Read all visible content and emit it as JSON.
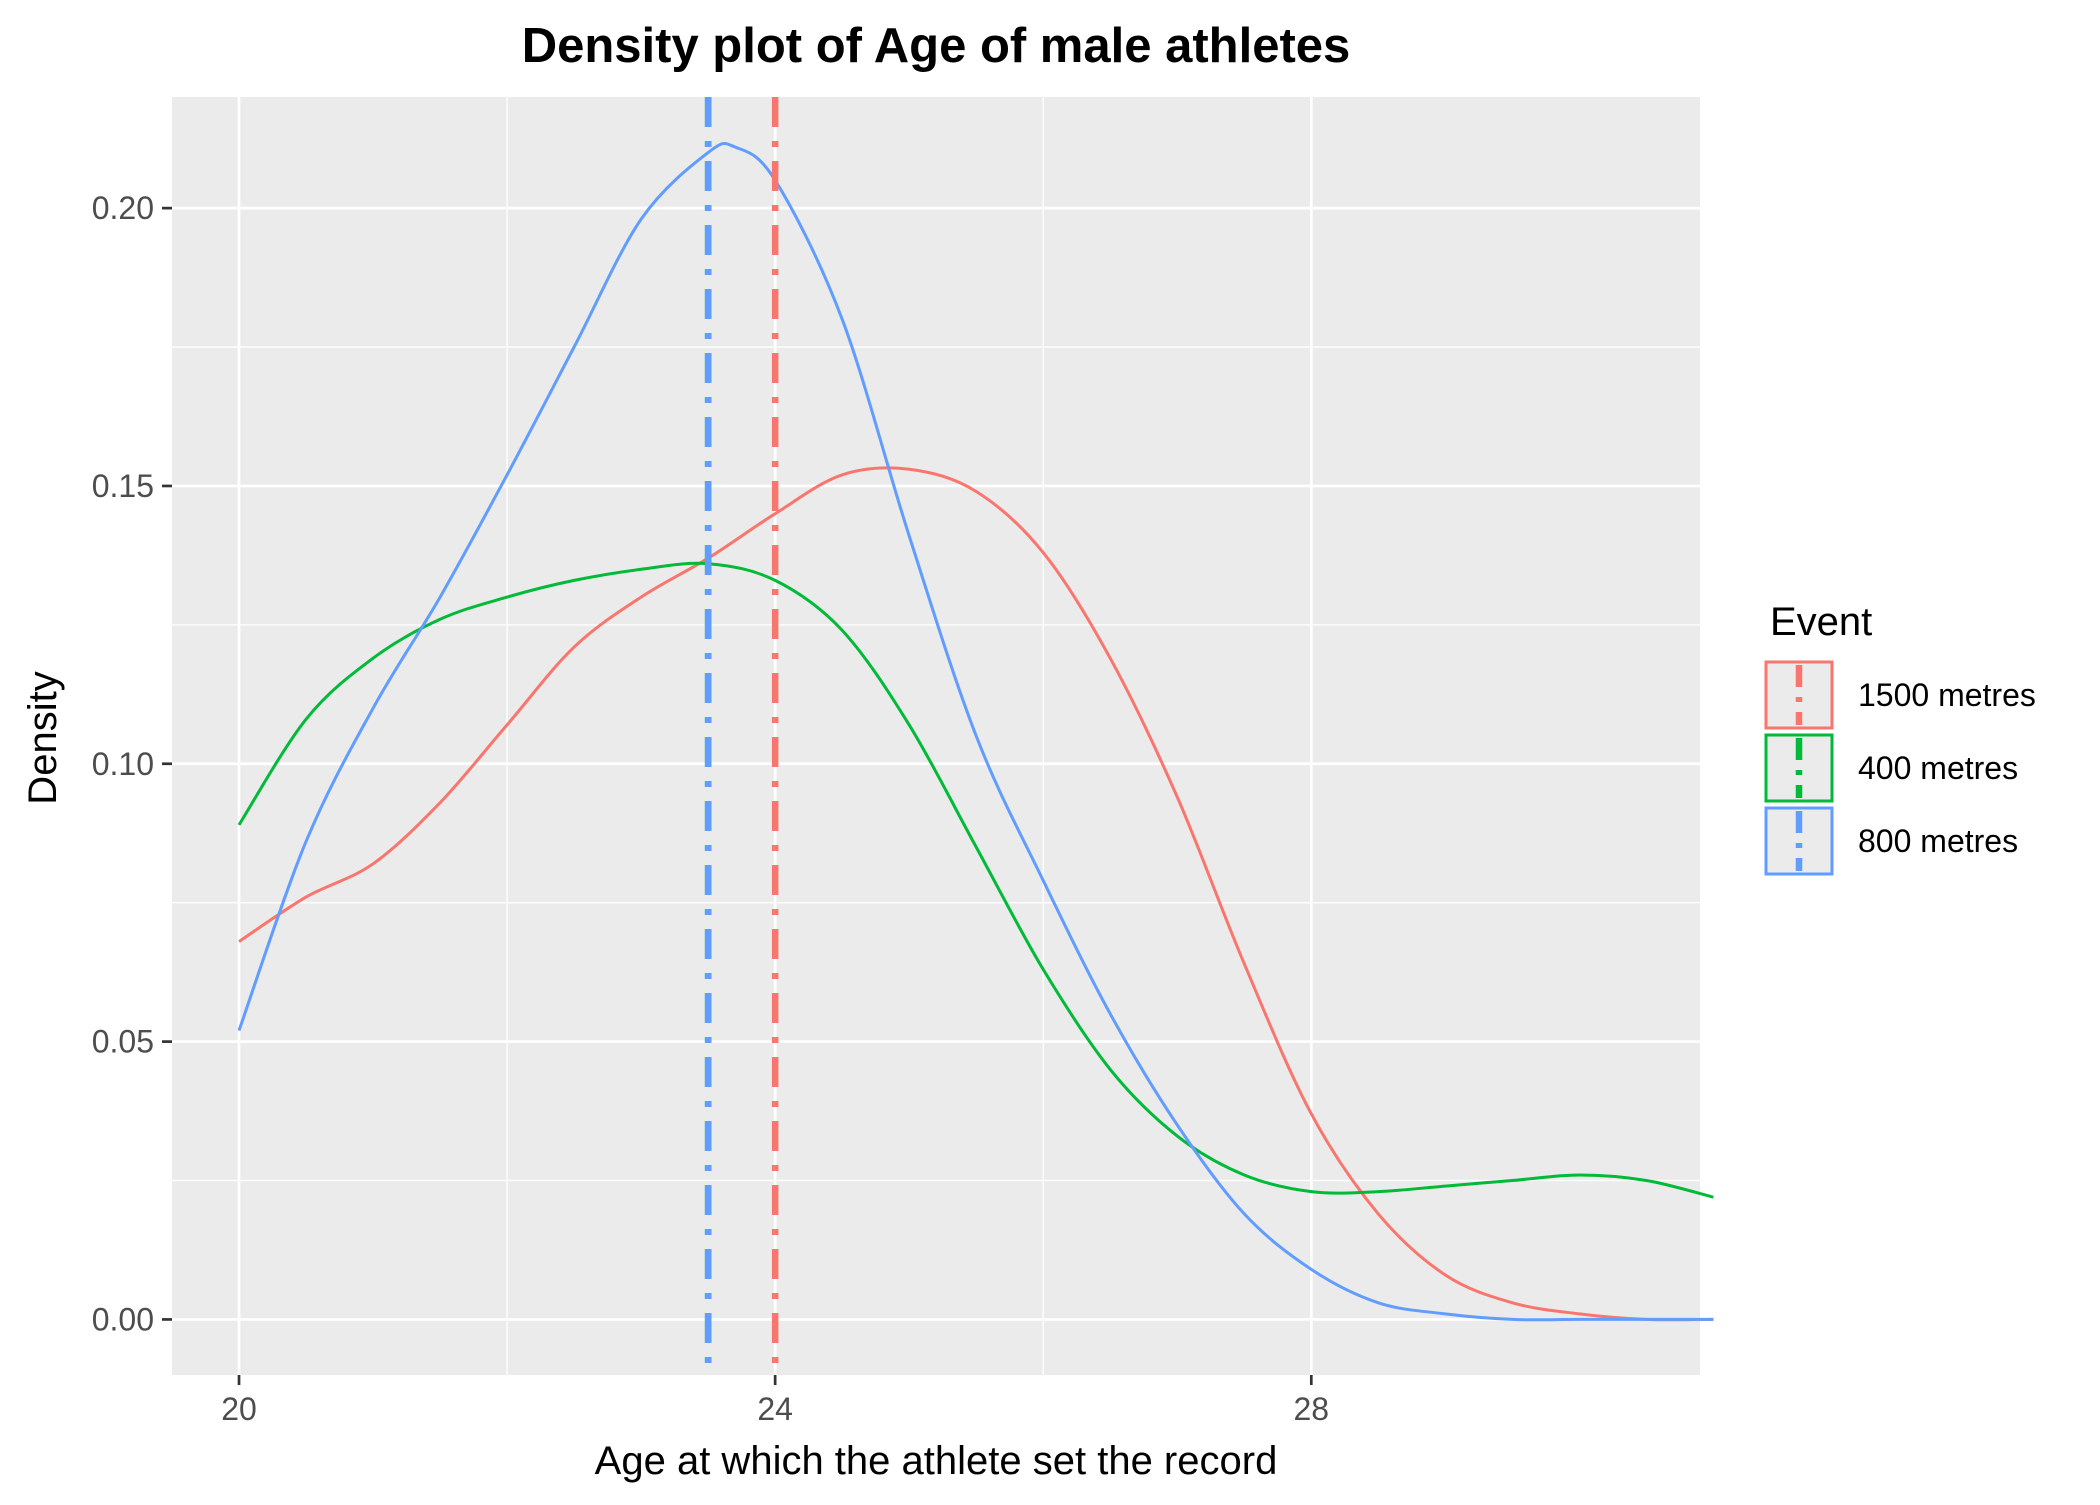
{
  "chart_data": {
    "type": "line",
    "subtype": "density",
    "title": "Density plot of Age of male athletes",
    "xlabel": "Age at which the athlete set the record",
    "ylabel": "Density",
    "xlim": [
      19.5,
      30.9
    ],
    "ylim": [
      -0.01,
      0.22
    ],
    "x_ticks": [
      20,
      24,
      28
    ],
    "x_tick_labels": [
      "20",
      "24",
      "28"
    ],
    "y_ticks": [
      0.0,
      0.05,
      0.1,
      0.15,
      0.2
    ],
    "y_tick_labels": [
      "0.00",
      "0.05",
      "0.10",
      "0.15",
      "0.20"
    ],
    "grid": true,
    "panel_background": "#EBEBEB",
    "legend": {
      "title": "Event",
      "position": "right",
      "entries": [
        "1500 metres",
        "400 metres",
        "800 metres"
      ]
    },
    "series": [
      {
        "name": "1500 metres",
        "color": "#F8766D",
        "mean_line": 24.0,
        "x": [
          20.0,
          20.5,
          21.0,
          21.5,
          22.0,
          22.5,
          23.0,
          23.5,
          24.0,
          24.5,
          25.0,
          25.5,
          26.0,
          26.5,
          27.0,
          27.5,
          28.0,
          28.5,
          29.0,
          29.5,
          30.0,
          30.5,
          31.0
        ],
        "values": [
          0.068,
          0.076,
          0.082,
          0.093,
          0.107,
          0.121,
          0.13,
          0.137,
          0.145,
          0.152,
          0.153,
          0.149,
          0.138,
          0.119,
          0.094,
          0.064,
          0.037,
          0.019,
          0.008,
          0.003,
          0.001,
          0.0,
          0.0
        ]
      },
      {
        "name": "400 metres",
        "color": "#00BA38",
        "mean_line": 23.5,
        "x": [
          20.0,
          20.5,
          21.0,
          21.5,
          22.0,
          22.5,
          23.0,
          23.5,
          24.0,
          24.5,
          25.0,
          25.5,
          26.0,
          26.5,
          27.0,
          27.5,
          28.0,
          28.5,
          29.0,
          29.5,
          30.0,
          30.5,
          31.0
        ],
        "values": [
          0.089,
          0.108,
          0.119,
          0.126,
          0.13,
          0.133,
          0.135,
          0.136,
          0.133,
          0.124,
          0.107,
          0.085,
          0.063,
          0.045,
          0.033,
          0.026,
          0.023,
          0.023,
          0.024,
          0.025,
          0.026,
          0.025,
          0.022
        ]
      },
      {
        "name": "800 metres",
        "color": "#619CFF",
        "mean_line": 23.5,
        "x": [
          20.0,
          20.5,
          21.0,
          21.5,
          22.0,
          22.5,
          23.0,
          23.5,
          23.7,
          24.0,
          24.5,
          25.0,
          25.5,
          26.0,
          26.5,
          27.0,
          27.5,
          28.0,
          28.5,
          29.0,
          29.5,
          30.0,
          30.5,
          31.0
        ],
        "values": [
          0.052,
          0.086,
          0.11,
          0.13,
          0.152,
          0.175,
          0.198,
          0.21,
          0.211,
          0.205,
          0.18,
          0.141,
          0.105,
          0.079,
          0.055,
          0.035,
          0.019,
          0.009,
          0.003,
          0.001,
          0.0,
          0.0,
          0.0,
          0.0
        ]
      }
    ]
  }
}
